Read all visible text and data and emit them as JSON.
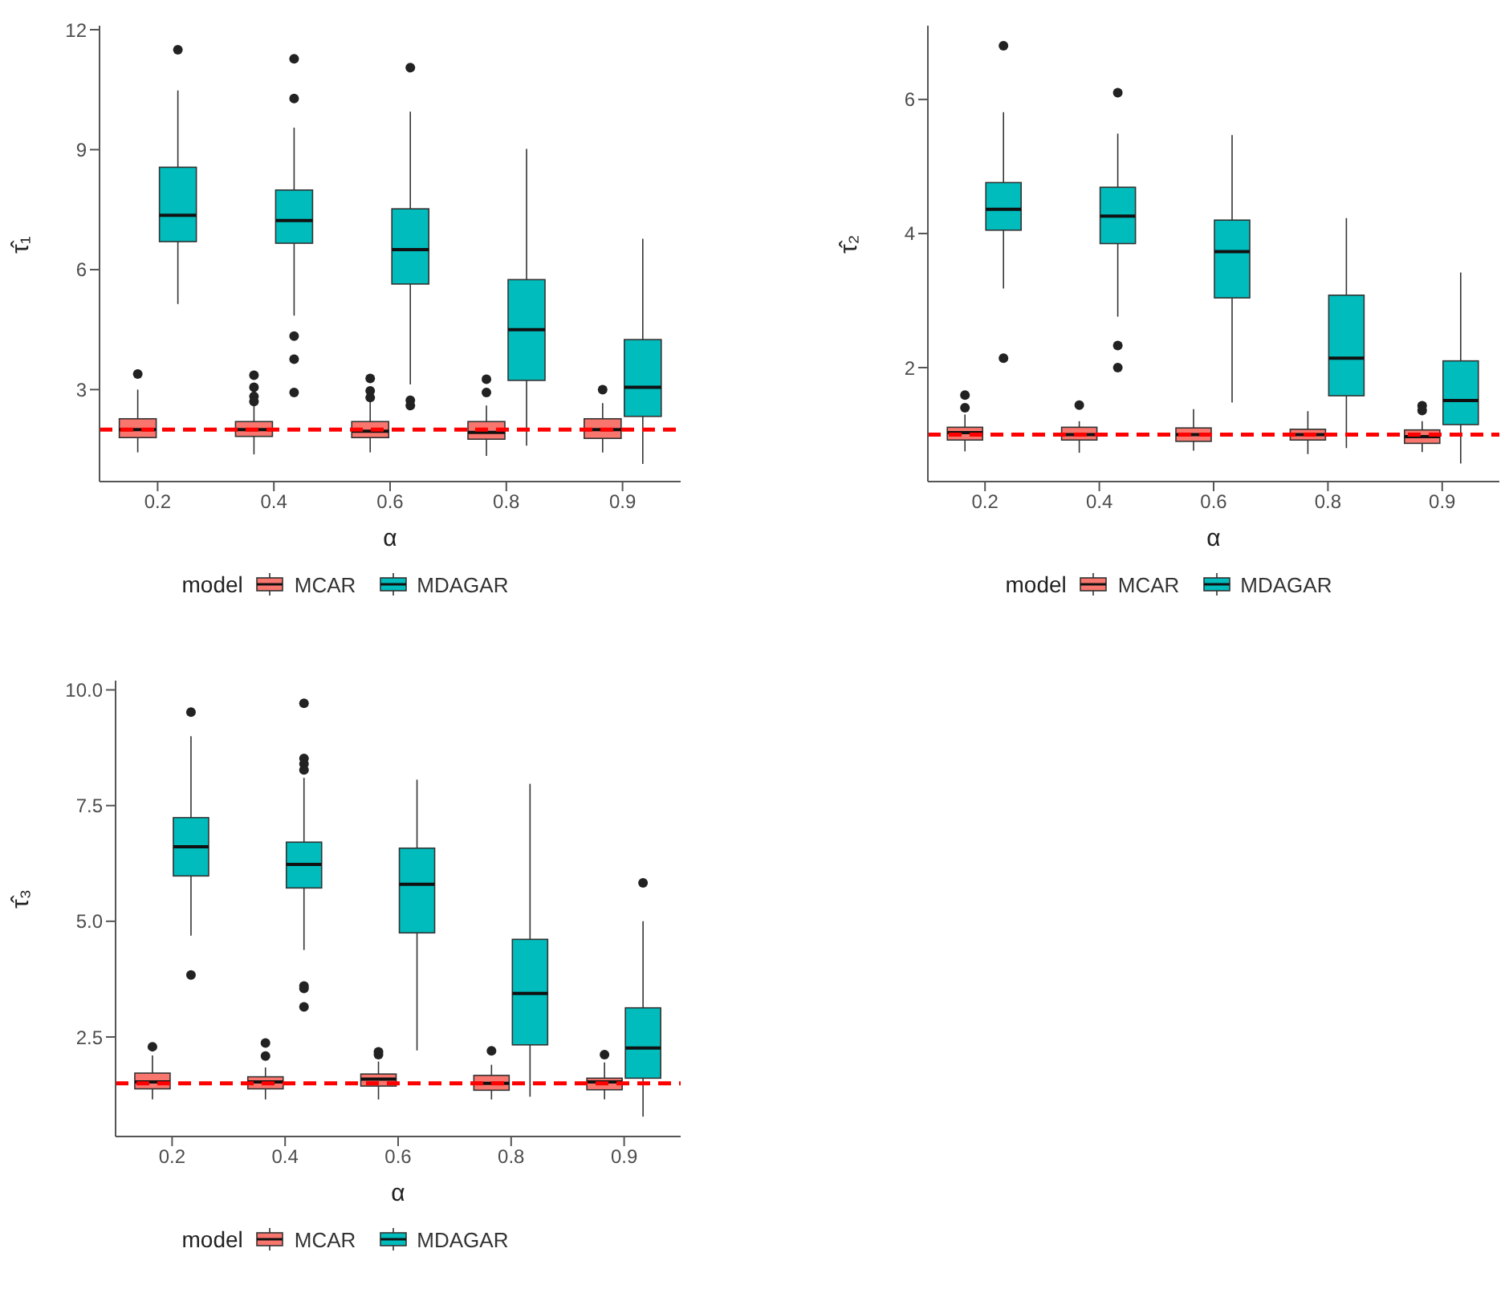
{
  "chart_data": [
    {
      "type": "box",
      "xlabel": "α",
      "ylabel": "τ̂₁",
      "legend_title": "model",
      "legend": "bottom",
      "categories": [
        "0.2",
        "0.4",
        "0.6",
        "0.8",
        "0.9"
      ],
      "ylim": [
        0.7,
        12.1
      ],
      "yticks": [
        3,
        6,
        9,
        12
      ],
      "ref_lines": [
        {
          "axis": "y",
          "value": 2,
          "color": "#ff0000",
          "line_style": "dashed"
        }
      ],
      "series": [
        {
          "name": "MCAR",
          "color": "#f8766d",
          "boxes": [
            {
              "low": 1.43,
              "q1": 1.8,
              "median": 2.0,
              "q3": 2.27,
              "high": 3.0,
              "outliers": [
                3.39
              ]
            },
            {
              "low": 1.38,
              "q1": 1.83,
              "median": 2.0,
              "q3": 2.2,
              "high": 2.6,
              "outliers": [
                3.36,
                3.06,
                2.83,
                2.7
              ]
            },
            {
              "low": 1.43,
              "q1": 1.8,
              "median": 1.96,
              "q3": 2.2,
              "high": 2.7,
              "outliers": [
                3.28,
                2.97,
                2.8
              ]
            },
            {
              "low": 1.34,
              "q1": 1.76,
              "median": 1.93,
              "q3": 2.2,
              "high": 2.6,
              "outliers": [
                3.26,
                2.93
              ]
            },
            {
              "low": 1.43,
              "q1": 1.78,
              "median": 2.0,
              "q3": 2.27,
              "high": 2.66,
              "outliers": [
                3.0
              ]
            }
          ]
        },
        {
          "name": "MDAGAR",
          "color": "#00bcbc",
          "boxes": [
            {
              "low": 5.14,
              "q1": 6.7,
              "median": 7.36,
              "q3": 8.56,
              "high": 10.48,
              "outliers": [
                11.5
              ]
            },
            {
              "low": 4.85,
              "q1": 6.66,
              "median": 7.23,
              "q3": 7.99,
              "high": 9.55,
              "outliers": [
                11.27,
                10.28,
                4.34,
                3.76,
                2.93
              ]
            },
            {
              "low": 3.13,
              "q1": 5.64,
              "median": 6.5,
              "q3": 7.52,
              "high": 9.95,
              "outliers": [
                11.05,
                2.73,
                2.6
              ]
            },
            {
              "low": 1.6,
              "q1": 3.23,
              "median": 4.5,
              "q3": 5.75,
              "high": 9.02
            },
            {
              "low": 1.14,
              "q1": 2.33,
              "median": 3.06,
              "q3": 4.25,
              "high": 6.77
            }
          ]
        }
      ]
    },
    {
      "type": "box",
      "xlabel": "α",
      "ylabel": "τ̂₂",
      "legend_title": "model",
      "legend": "bottom",
      "categories": [
        "0.2",
        "0.4",
        "0.6",
        "0.8",
        "0.9"
      ],
      "ylim": [
        0.3,
        7.1
      ],
      "yticks": [
        2,
        4,
        6
      ],
      "ref_lines": [
        {
          "axis": "y",
          "value": 1,
          "color": "#ff0000",
          "line_style": "dashed"
        }
      ],
      "series": [
        {
          "name": "MCAR",
          "color": "#f8766d",
          "boxes": [
            {
              "low": 0.75,
              "q1": 0.92,
              "median": 1.03,
              "q3": 1.11,
              "high": 1.3,
              "outliers": [
                1.59,
                1.4
              ]
            },
            {
              "low": 0.73,
              "q1": 0.92,
              "median": 1.0,
              "q3": 1.11,
              "high": 1.2,
              "outliers": [
                1.44
              ]
            },
            {
              "low": 0.76,
              "q1": 0.9,
              "median": 1.0,
              "q3": 1.1,
              "high": 1.38
            },
            {
              "low": 0.71,
              "q1": 0.92,
              "median": 1.0,
              "q3": 1.08,
              "high": 1.35
            },
            {
              "low": 0.74,
              "q1": 0.87,
              "median": 0.97,
              "q3": 1.07,
              "high": 1.2,
              "outliers": [
                1.43,
                1.36
              ]
            }
          ]
        },
        {
          "name": "MDAGAR",
          "color": "#00bcbc",
          "boxes": [
            {
              "low": 3.18,
              "q1": 4.05,
              "median": 4.36,
              "q3": 4.76,
              "high": 5.81,
              "outliers": [
                6.8,
                2.14
              ]
            },
            {
              "low": 2.76,
              "q1": 3.85,
              "median": 4.26,
              "q3": 4.69,
              "high": 5.49,
              "outliers": [
                6.1,
                2.33,
                2.0
              ]
            },
            {
              "low": 1.48,
              "q1": 3.04,
              "median": 3.73,
              "q3": 4.2,
              "high": 5.47
            },
            {
              "low": 0.8,
              "q1": 1.58,
              "median": 2.14,
              "q3": 3.08,
              "high": 4.23
            },
            {
              "low": 0.57,
              "q1": 1.15,
              "median": 1.51,
              "q3": 2.1,
              "high": 3.42
            }
          ]
        }
      ]
    },
    {
      "type": "box",
      "xlabel": "α",
      "ylabel": "τ̂₃",
      "legend_title": "model",
      "legend": "bottom",
      "categories": [
        "0.2",
        "0.4",
        "0.6",
        "0.8",
        "0.9"
      ],
      "ylim": [
        0.35,
        10.2
      ],
      "yticks": [
        {
          "value": 2.5,
          "label": "2.5"
        },
        {
          "value": 5,
          "label": "5.0"
        },
        {
          "value": 7.5,
          "label": "7.5"
        },
        {
          "value": 10,
          "label": "10.0"
        }
      ],
      "ref_lines": [
        {
          "axis": "y",
          "value": 1.5,
          "color": "#ff0000",
          "line_style": "dashed"
        }
      ],
      "series": [
        {
          "name": "MCAR",
          "color": "#f8766d",
          "boxes": [
            {
              "low": 1.15,
              "q1": 1.38,
              "median": 1.53,
              "q3": 1.72,
              "high": 2.1,
              "outliers": [
                2.29
              ]
            },
            {
              "low": 1.15,
              "q1": 1.38,
              "median": 1.53,
              "q3": 1.64,
              "high": 1.84,
              "outliers": [
                2.37,
                2.09
              ]
            },
            {
              "low": 1.15,
              "q1": 1.44,
              "median": 1.59,
              "q3": 1.7,
              "high": 1.97,
              "outliers": [
                2.18,
                2.12
              ]
            },
            {
              "low": 1.15,
              "q1": 1.35,
              "median": 1.5,
              "q3": 1.67,
              "high": 1.9,
              "outliers": [
                2.2
              ]
            },
            {
              "low": 1.15,
              "q1": 1.36,
              "median": 1.53,
              "q3": 1.61,
              "high": 1.95,
              "outliers": [
                2.12
              ]
            }
          ]
        },
        {
          "name": "MDAGAR",
          "color": "#00bcbc",
          "boxes": [
            {
              "low": 4.69,
              "q1": 5.98,
              "median": 6.61,
              "q3": 7.24,
              "high": 9.0,
              "outliers": [
                9.52,
                3.84
              ]
            },
            {
              "low": 4.38,
              "q1": 5.72,
              "median": 6.23,
              "q3": 6.71,
              "high": 8.1,
              "outliers": [
                9.71,
                8.52,
                8.4,
                8.27,
                3.6,
                3.55,
                3.15
              ]
            },
            {
              "low": 2.21,
              "q1": 4.75,
              "median": 5.8,
              "q3": 6.58,
              "high": 8.06
            },
            {
              "low": 1.21,
              "q1": 2.33,
              "median": 3.44,
              "q3": 4.61,
              "high": 7.97
            },
            {
              "low": 0.78,
              "q1": 1.61,
              "median": 2.26,
              "q3": 3.13,
              "high": 5.0,
              "outliers": [
                5.83
              ]
            }
          ]
        }
      ]
    }
  ]
}
